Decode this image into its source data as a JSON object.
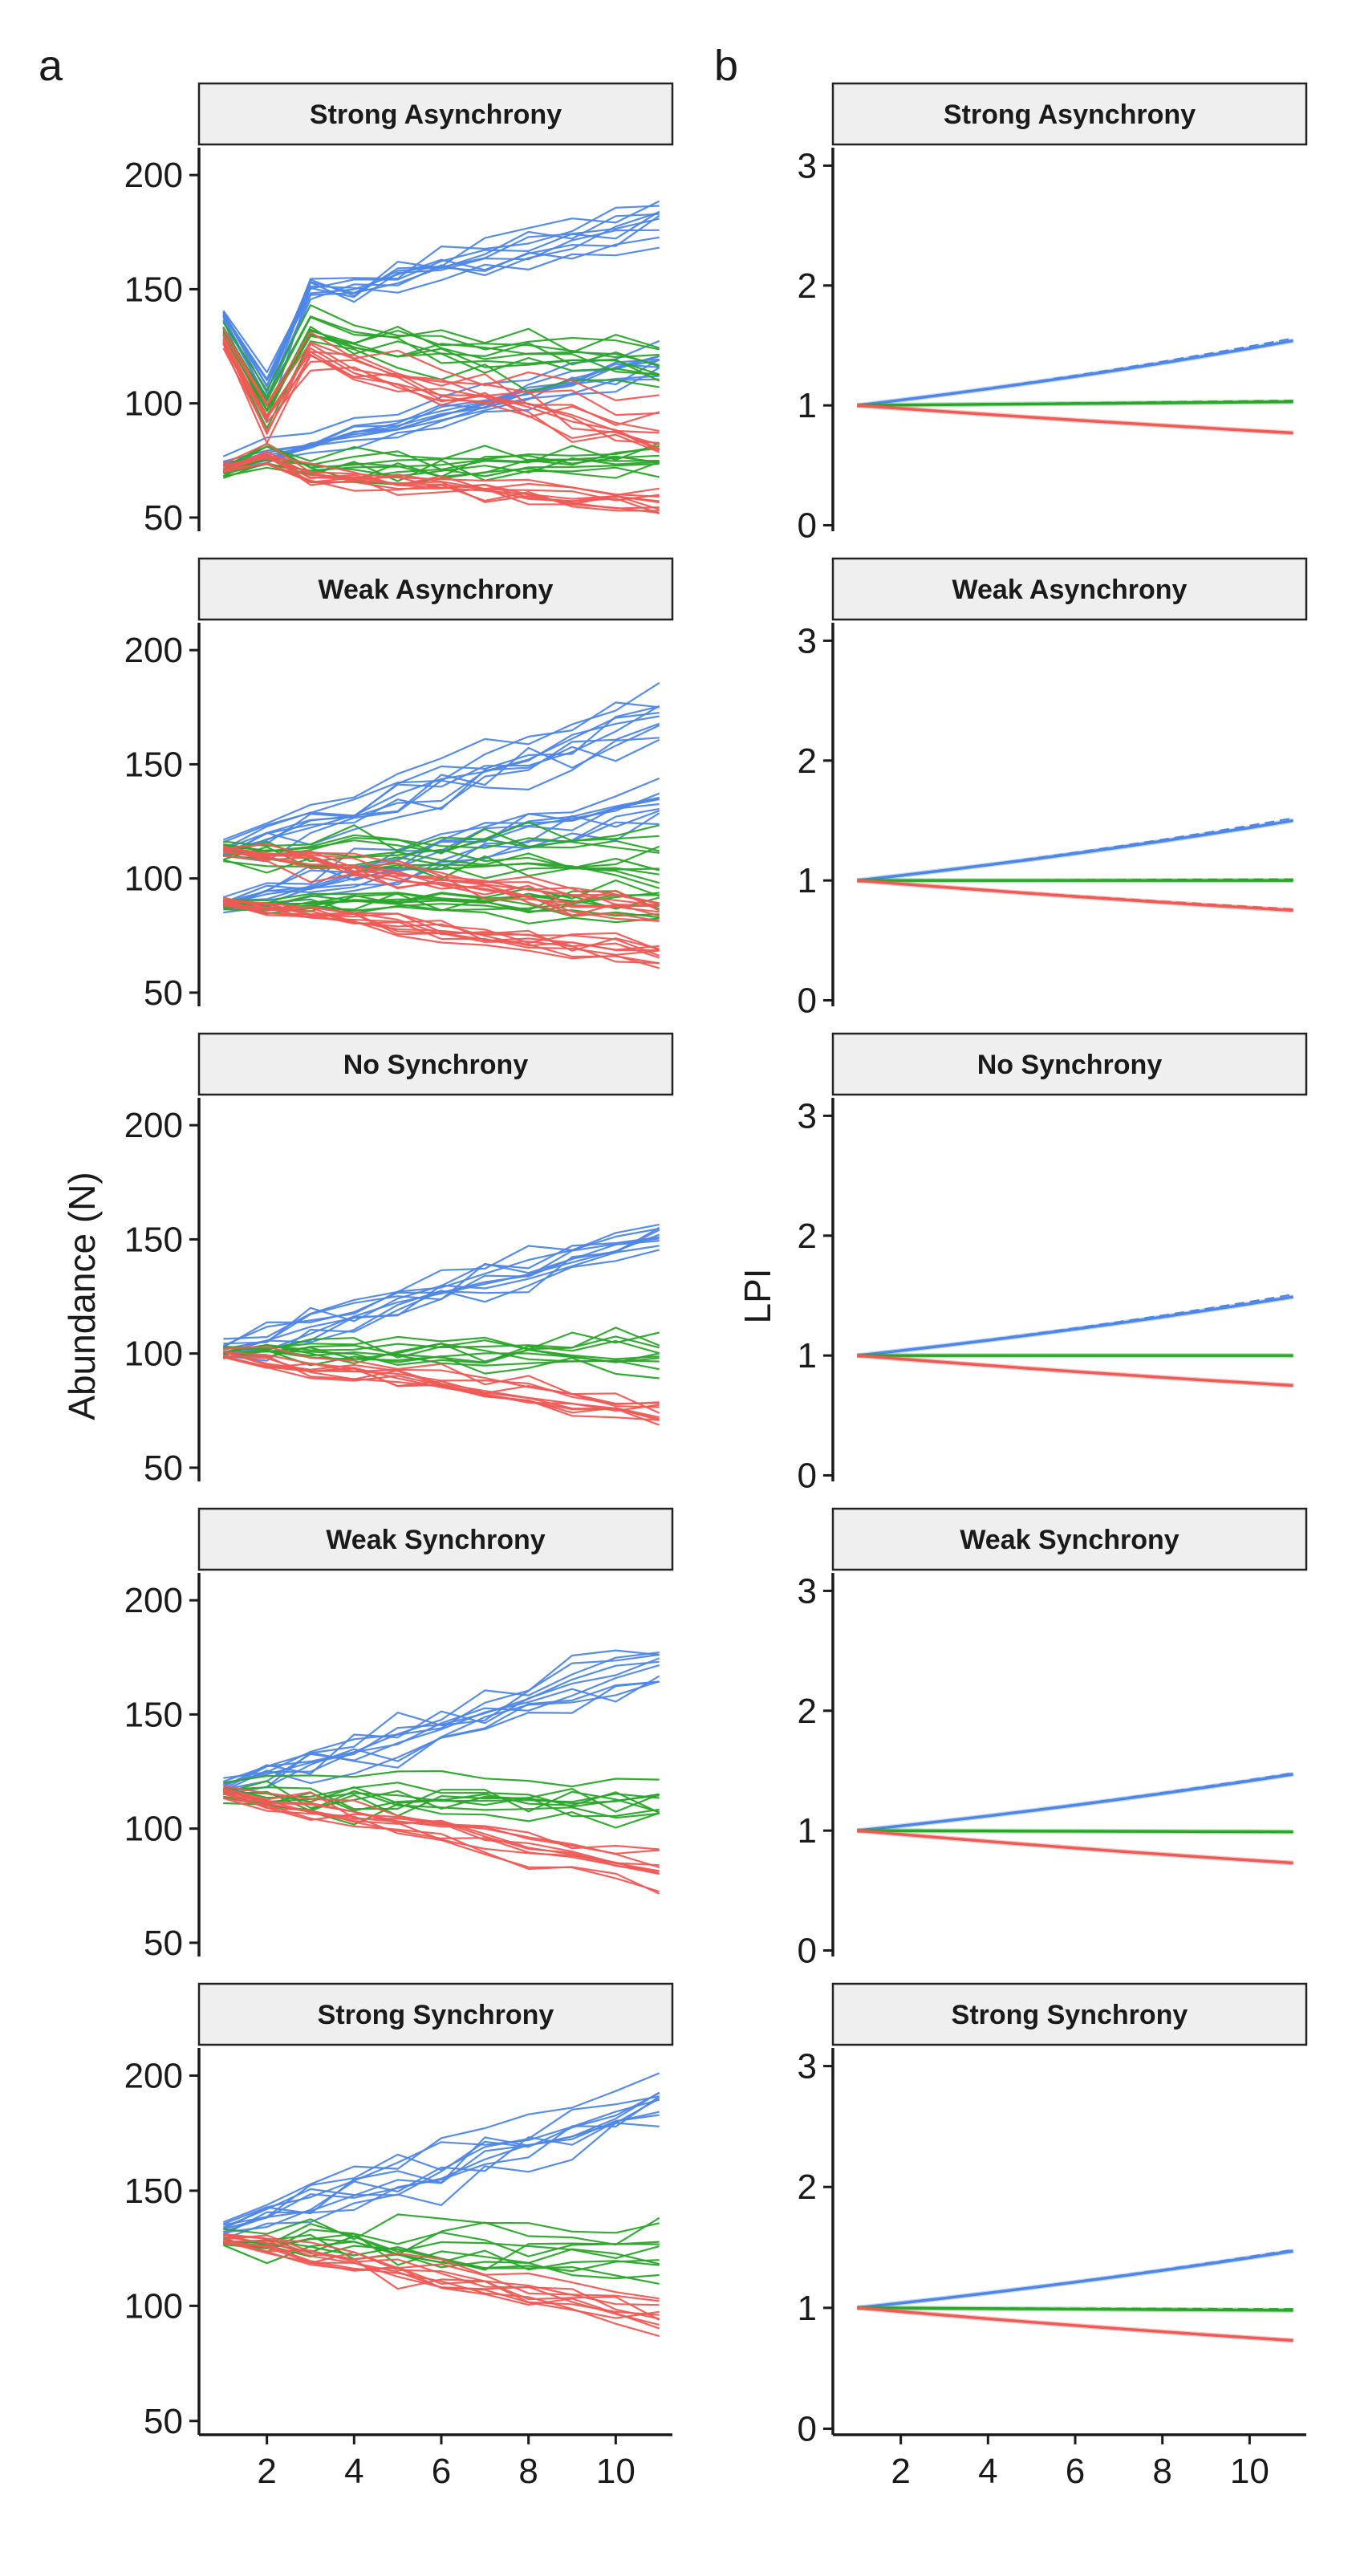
{
  "figure": {
    "panel_tags": [
      "a",
      "b"
    ],
    "ylabel_left": "Abundance (N)",
    "ylabel_right": "LPI",
    "colors": {
      "increase": "#4E86E6",
      "stable": "#2AA52A",
      "decline": "#EE5A55",
      "strip_fill": "#EFEFEF",
      "axis": "#1a1a1a"
    }
  },
  "chart_data": [
    {
      "type": "line",
      "panel": "a",
      "row": 0,
      "strip": "Strong Asynchrony",
      "xlabel": "",
      "ylabel": "Abundance (N)",
      "ylim": [
        44,
        212
      ],
      "xlim": [
        0.7,
        11.3
      ],
      "yticks": [
        50,
        100,
        150,
        200
      ],
      "xticks": [
        2,
        4,
        6,
        8,
        10
      ],
      "grid": false,
      "x": [
        1,
        2,
        3,
        4,
        5,
        6,
        7,
        8,
        9,
        10,
        11
      ],
      "groups": [
        {
          "color": "#4E86E6",
          "start": 138,
          "end": 178,
          "spread": 6,
          "dip": -38
        },
        {
          "color": "#4E86E6",
          "start": 73,
          "end": 117,
          "spread": 4,
          "dip": 0
        },
        {
          "color": "#2AA52A",
          "start": 132,
          "end": 118,
          "spread": 6,
          "dip": -32
        },
        {
          "color": "#2AA52A",
          "start": 70,
          "end": 76,
          "spread": 5,
          "dip": 6
        },
        {
          "color": "#EE5A55",
          "start": 128,
          "end": 88,
          "spread": 6,
          "dip": -30
        },
        {
          "color": "#EE5A55",
          "start": 72,
          "end": 57,
          "spread": 4,
          "dip": 6
        }
      ]
    },
    {
      "type": "line",
      "panel": "a",
      "row": 1,
      "strip": "Weak Asynchrony",
      "xlabel": "",
      "ylabel": "Abundance (N)",
      "ylim": [
        44,
        212
      ],
      "xlim": [
        0.7,
        11.3
      ],
      "yticks": [
        50,
        100,
        150,
        200
      ],
      "xticks": [
        2,
        4,
        6,
        8,
        10
      ],
      "grid": false,
      "x": [
        1,
        2,
        3,
        4,
        5,
        6,
        7,
        8,
        9,
        10,
        11
      ],
      "groups": [
        {
          "color": "#4E86E6",
          "start": 112,
          "end": 168,
          "spread": 7,
          "dip": 0
        },
        {
          "color": "#4E86E6",
          "start": 88,
          "end": 132,
          "spread": 6,
          "dip": 0
        },
        {
          "color": "#2AA52A",
          "start": 112,
          "end": 110,
          "spread": 6,
          "dip": 0
        },
        {
          "color": "#2AA52A",
          "start": 88,
          "end": 86,
          "spread": 5,
          "dip": 0
        },
        {
          "color": "#EE5A55",
          "start": 112,
          "end": 85,
          "spread": 5,
          "dip": 0
        },
        {
          "color": "#EE5A55",
          "start": 90,
          "end": 67,
          "spread": 4,
          "dip": 0
        }
      ]
    },
    {
      "type": "line",
      "panel": "a",
      "row": 2,
      "strip": "No Synchrony",
      "xlabel": "",
      "ylabel": "Abundance (N)",
      "ylim": [
        44,
        212
      ],
      "xlim": [
        0.7,
        11.3
      ],
      "yticks": [
        50,
        100,
        150,
        200
      ],
      "xticks": [
        2,
        4,
        6,
        8,
        10
      ],
      "grid": false,
      "x": [
        1,
        2,
        3,
        4,
        5,
        6,
        7,
        8,
        9,
        10,
        11
      ],
      "groups": [
        {
          "color": "#4E86E6",
          "start": 102,
          "end": 152,
          "spread": 6,
          "dip": 0
        },
        {
          "color": "#2AA52A",
          "start": 100,
          "end": 100,
          "spread": 5,
          "dip": 0
        },
        {
          "color": "#EE5A55",
          "start": 100,
          "end": 75,
          "spread": 4,
          "dip": 0
        }
      ]
    },
    {
      "type": "line",
      "panel": "a",
      "row": 3,
      "strip": "Weak Synchrony",
      "xlabel": "",
      "ylabel": "Abundance (N)",
      "ylim": [
        44,
        212
      ],
      "xlim": [
        0.7,
        11.3
      ],
      "yticks": [
        50,
        100,
        150,
        200
      ],
      "xticks": [
        2,
        4,
        6,
        8,
        10
      ],
      "grid": false,
      "x": [
        1,
        2,
        3,
        4,
        5,
        6,
        7,
        8,
        9,
        10,
        11
      ],
      "groups": [
        {
          "color": "#4E86E6",
          "start": 118,
          "end": 170,
          "spread": 7,
          "dip": 0
        },
        {
          "color": "#2AA52A",
          "start": 116,
          "end": 112,
          "spread": 6,
          "dip": 0
        },
        {
          "color": "#EE5A55",
          "start": 116,
          "end": 82,
          "spread": 4,
          "dip": 0
        }
      ]
    },
    {
      "type": "line",
      "panel": "a",
      "row": 4,
      "strip": "Strong Synchrony",
      "xlabel": "",
      "ylabel": "Abundance (N)",
      "ylim": [
        44,
        212
      ],
      "xlim": [
        0.7,
        11.3
      ],
      "yticks": [
        50,
        100,
        150,
        200
      ],
      "xticks": [
        2,
        4,
        6,
        8,
        10
      ],
      "grid": false,
      "x": [
        1,
        2,
        3,
        4,
        5,
        6,
        7,
        8,
        9,
        10,
        11
      ],
      "groups": [
        {
          "color": "#4E86E6",
          "start": 133,
          "end": 190,
          "spread": 8,
          "dip": 0
        },
        {
          "color": "#2AA52A",
          "start": 130,
          "end": 125,
          "spread": 7,
          "dip": 0
        },
        {
          "color": "#EE5A55",
          "start": 128,
          "end": 93,
          "spread": 5,
          "dip": 0
        }
      ]
    },
    {
      "type": "line",
      "panel": "b",
      "row": 0,
      "strip": "Strong Asynchrony",
      "xlabel": "",
      "ylabel": "LPI",
      "ylim": [
        -0.05,
        3.15
      ],
      "xlim": [
        0.7,
        11.3
      ],
      "yticks": [
        0,
        1,
        2,
        3
      ],
      "xticks": [
        2,
        4,
        6,
        8,
        10
      ],
      "grid": false,
      "x": [
        1,
        2,
        3,
        4,
        5,
        6,
        7,
        8,
        9,
        10,
        11
      ],
      "series": [
        {
          "color": "#4E86E6",
          "end": 1.54,
          "dashed_end": 1.56
        },
        {
          "color": "#2AA52A",
          "end": 1.03,
          "dashed_end": 1.04
        },
        {
          "color": "#EE5A55",
          "end": 0.77,
          "dashed_end": 0.77
        }
      ]
    },
    {
      "type": "line",
      "panel": "b",
      "row": 1,
      "strip": "Weak Asynchrony",
      "xlabel": "",
      "ylabel": "LPI",
      "ylim": [
        -0.05,
        3.15
      ],
      "xlim": [
        0.7,
        11.3
      ],
      "yticks": [
        0,
        1,
        2,
        3
      ],
      "xticks": [
        2,
        4,
        6,
        8,
        10
      ],
      "grid": false,
      "x": [
        1,
        2,
        3,
        4,
        5,
        6,
        7,
        8,
        9,
        10,
        11
      ],
      "series": [
        {
          "color": "#4E86E6",
          "end": 1.5,
          "dashed_end": 1.52
        },
        {
          "color": "#2AA52A",
          "end": 1.0,
          "dashed_end": 1.01
        },
        {
          "color": "#EE5A55",
          "end": 0.75,
          "dashed_end": 0.76
        }
      ]
    },
    {
      "type": "line",
      "panel": "b",
      "row": 2,
      "strip": "No Synchrony",
      "xlabel": "",
      "ylabel": "LPI",
      "ylim": [
        -0.05,
        3.15
      ],
      "xlim": [
        0.7,
        11.3
      ],
      "yticks": [
        0,
        1,
        2,
        3
      ],
      "xticks": [
        2,
        4,
        6,
        8,
        10
      ],
      "grid": false,
      "x": [
        1,
        2,
        3,
        4,
        5,
        6,
        7,
        8,
        9,
        10,
        11
      ],
      "series": [
        {
          "color": "#4E86E6",
          "end": 1.49,
          "dashed_end": 1.51
        },
        {
          "color": "#2AA52A",
          "end": 1.0,
          "dashed_end": 1.0
        },
        {
          "color": "#EE5A55",
          "end": 0.75,
          "dashed_end": 0.75
        }
      ]
    },
    {
      "type": "line",
      "panel": "b",
      "row": 3,
      "strip": "Weak Synchrony",
      "xlabel": "",
      "ylabel": "LPI",
      "ylim": [
        -0.05,
        3.15
      ],
      "xlim": [
        0.7,
        11.3
      ],
      "yticks": [
        0,
        1,
        2,
        3
      ],
      "xticks": [
        2,
        4,
        6,
        8,
        10
      ],
      "grid": false,
      "x": [
        1,
        2,
        3,
        4,
        5,
        6,
        7,
        8,
        9,
        10,
        11
      ],
      "series": [
        {
          "color": "#4E86E6",
          "end": 1.47,
          "dashed_end": 1.48
        },
        {
          "color": "#2AA52A",
          "end": 0.99,
          "dashed_end": 0.99
        },
        {
          "color": "#EE5A55",
          "end": 0.73,
          "dashed_end": 0.73
        }
      ]
    },
    {
      "type": "line",
      "panel": "b",
      "row": 4,
      "strip": "Strong Synchrony",
      "xlabel": "",
      "ylabel": "LPI",
      "ylim": [
        -0.05,
        3.15
      ],
      "xlim": [
        0.7,
        11.3
      ],
      "yticks": [
        0,
        1,
        2,
        3
      ],
      "xticks": [
        2,
        4,
        6,
        8,
        10
      ],
      "grid": false,
      "x": [
        1,
        2,
        3,
        4,
        5,
        6,
        7,
        8,
        9,
        10,
        11
      ],
      "series": [
        {
          "color": "#4E86E6",
          "end": 1.47,
          "dashed_end": 1.48
        },
        {
          "color": "#2AA52A",
          "end": 0.98,
          "dashed_end": 0.99
        },
        {
          "color": "#EE5A55",
          "end": 0.73,
          "dashed_end": 0.73
        }
      ]
    }
  ]
}
